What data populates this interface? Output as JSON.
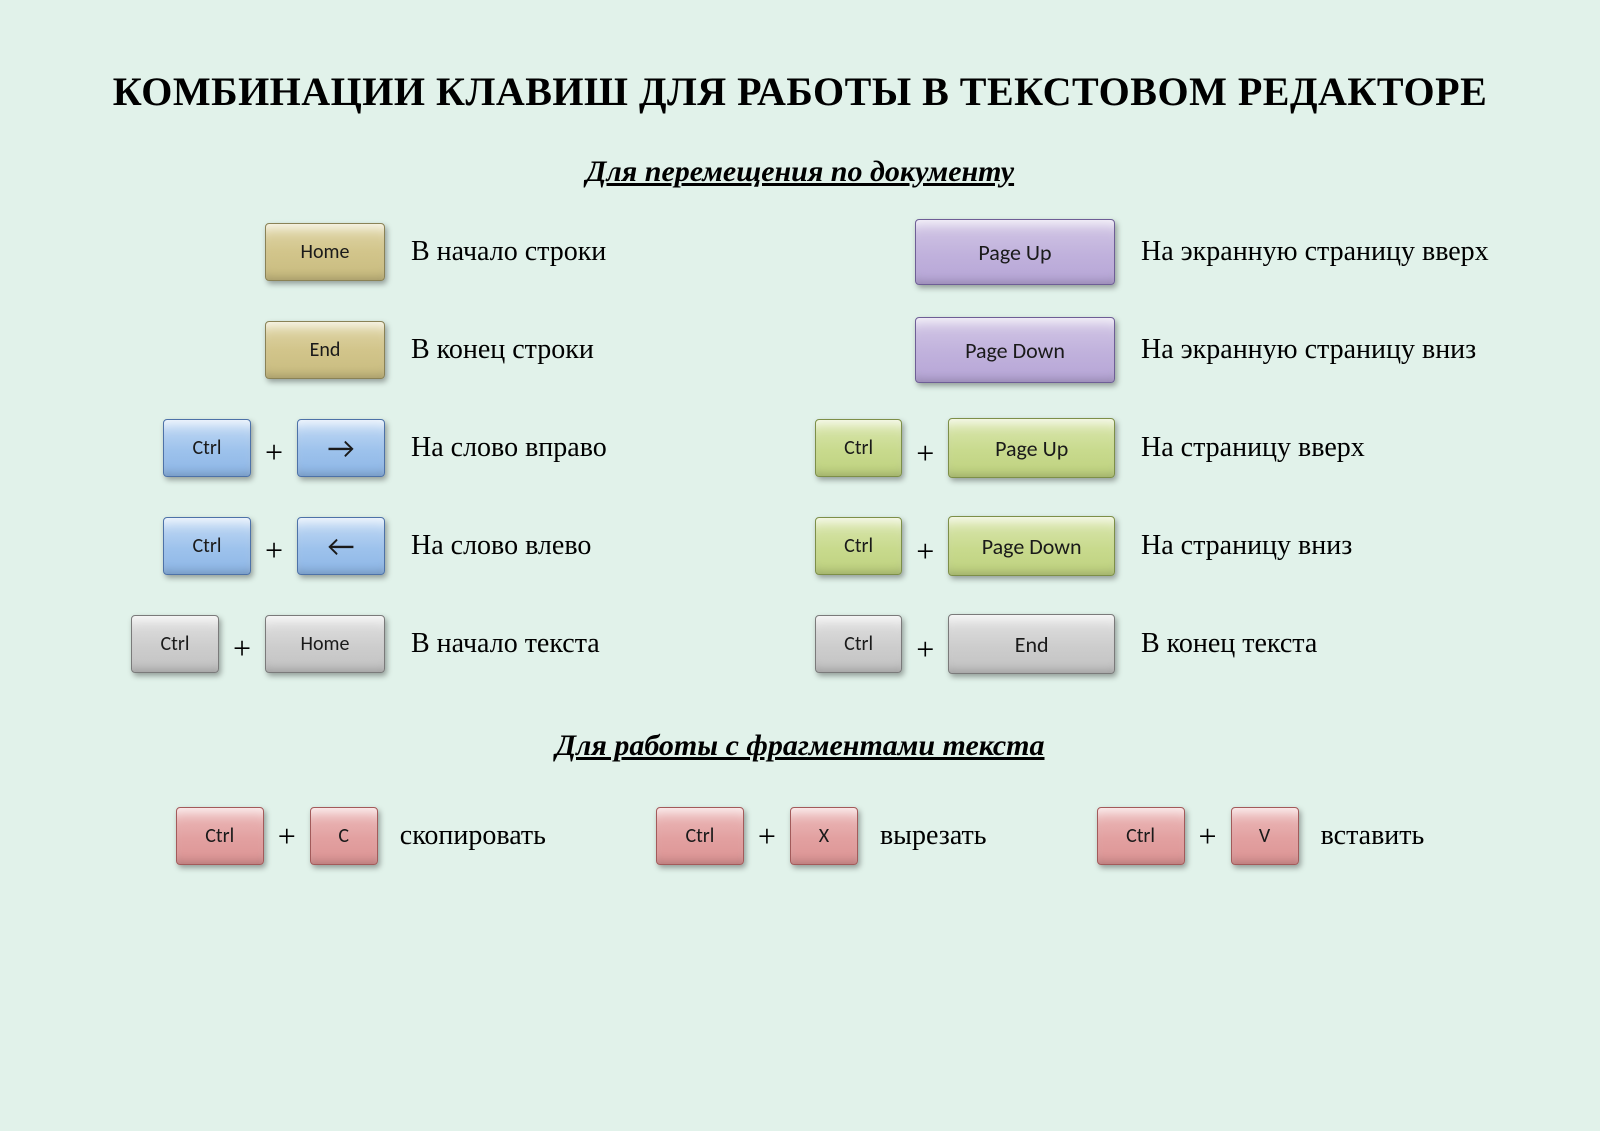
{
  "colors": {
    "background": "#e1f2ea",
    "tan": "#d2c58b",
    "purple": "#c0b1dc",
    "blue": "#9dc2ec",
    "green": "#c8da8d",
    "gray": "#cdcdcd",
    "pink": "#e2a0a0",
    "text": "#000000"
  },
  "typography": {
    "title_font": "Times New Roman",
    "title_size_pt": 30,
    "subtitle_size_pt": 22,
    "key_font": "Calibri",
    "key_size_pt": 15,
    "desc_font": "Times New Roman",
    "desc_size_pt": 21
  },
  "title": "КОМБИНАЦИИ КЛАВИШ ДЛЯ РАБОТЫ В ТЕКСТОВОМ РЕДАКТОРЕ",
  "plus": "+",
  "section_navigation": {
    "heading": "Для перемещения по документу",
    "left": [
      {
        "keys": [
          {
            "label": "Home",
            "color": "tan",
            "size": "med"
          }
        ],
        "desc": "В начало строки"
      },
      {
        "keys": [
          {
            "label": "End",
            "color": "tan",
            "size": "med"
          }
        ],
        "desc": "В конец строки"
      },
      {
        "keys": [
          {
            "label": "Ctrl",
            "color": "blue",
            "size": "small"
          },
          {
            "label": "→",
            "arrow": true,
            "color": "blue",
            "size": "small"
          }
        ],
        "desc": "На слово вправо"
      },
      {
        "keys": [
          {
            "label": "Ctrl",
            "color": "blue",
            "size": "small"
          },
          {
            "label": "←",
            "arrow": true,
            "color": "blue",
            "size": "small"
          }
        ],
        "desc": "На слово влево"
      },
      {
        "keys": [
          {
            "label": "Ctrl",
            "color": "gray",
            "size": "small"
          },
          {
            "label": "Home",
            "color": "gray",
            "size": "med"
          }
        ],
        "desc": "В начало текста"
      }
    ],
    "right": [
      {
        "keys": [
          {
            "label": "Page Up",
            "color": "purple",
            "size": "xwide"
          }
        ],
        "desc": "На экранную страницу вверх"
      },
      {
        "keys": [
          {
            "label": "Page Down",
            "color": "purple",
            "size": "xwide"
          }
        ],
        "desc": "На экранную страницу вниз"
      },
      {
        "keys": [
          {
            "label": "Ctrl",
            "color": "green",
            "size": "small"
          },
          {
            "label": "Page Up",
            "color": "green",
            "size": "wide"
          }
        ],
        "desc": "На страницу вверх"
      },
      {
        "keys": [
          {
            "label": "Ctrl",
            "color": "green",
            "size": "small"
          },
          {
            "label": "Page Down",
            "color": "green",
            "size": "wide"
          }
        ],
        "desc": "На страницу вниз"
      },
      {
        "keys": [
          {
            "label": "Ctrl",
            "color": "gray",
            "size": "small"
          },
          {
            "label": "End",
            "color": "gray",
            "size": "wide"
          }
        ],
        "desc": "В конец текста"
      }
    ]
  },
  "section_fragments": {
    "heading": "Для работы с фрагментами текста",
    "items": [
      {
        "keys": [
          {
            "label": "Ctrl",
            "color": "pink",
            "size": "small"
          },
          {
            "label": "C",
            "color": "pink",
            "size": "square"
          }
        ],
        "desc": "скопировать"
      },
      {
        "keys": [
          {
            "label": "Ctrl",
            "color": "pink",
            "size": "small"
          },
          {
            "label": "X",
            "color": "pink",
            "size": "square"
          }
        ],
        "desc": "вырезать"
      },
      {
        "keys": [
          {
            "label": "Ctrl",
            "color": "pink",
            "size": "small"
          },
          {
            "label": "V",
            "color": "pink",
            "size": "square"
          }
        ],
        "desc": "вставить"
      }
    ]
  }
}
